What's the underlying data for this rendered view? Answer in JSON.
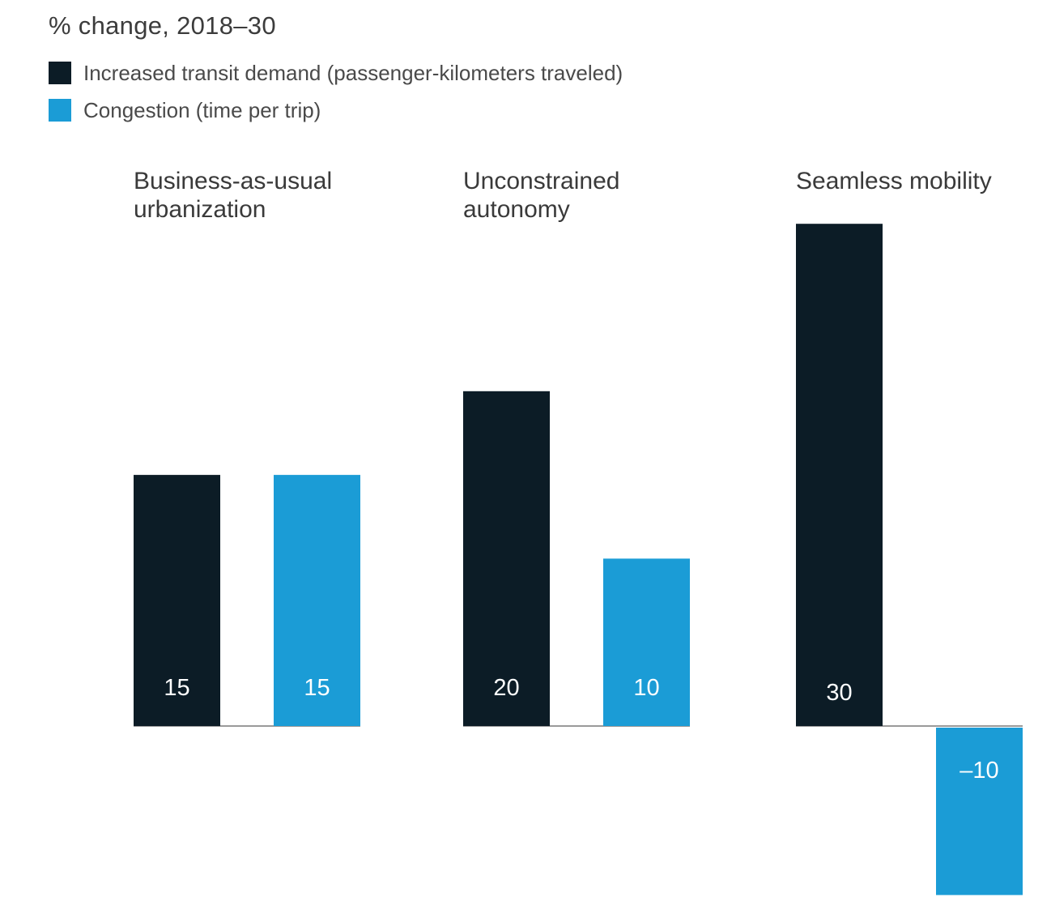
{
  "subtitle": "% change, 2018–30",
  "colors": {
    "demand": "#0c1c26",
    "congestion": "#1b9cd6",
    "axis": "#9a9a9a"
  },
  "chart_data": {
    "type": "bar",
    "ylabel": "% change, 2018–30",
    "categories": [
      [
        "Business-as-usual",
        "urbanization"
      ],
      [
        "Unconstrained",
        "autonomy"
      ],
      [
        "Seamless mobility"
      ]
    ],
    "series": [
      {
        "name": "Increased transit demand (passenger-kilometers traveled)",
        "color": "#0c1c26",
        "values": [
          15,
          20,
          30
        ],
        "labels": [
          "15",
          "20",
          "30"
        ]
      },
      {
        "name": "Congestion (time per trip)",
        "color": "#1b9cd6",
        "values": [
          15,
          10,
          -10
        ],
        "labels": [
          "15",
          "10",
          "–10"
        ]
      }
    ],
    "ylim": [
      -10,
      30
    ],
    "grid": false,
    "legend_position": "top-left"
  }
}
